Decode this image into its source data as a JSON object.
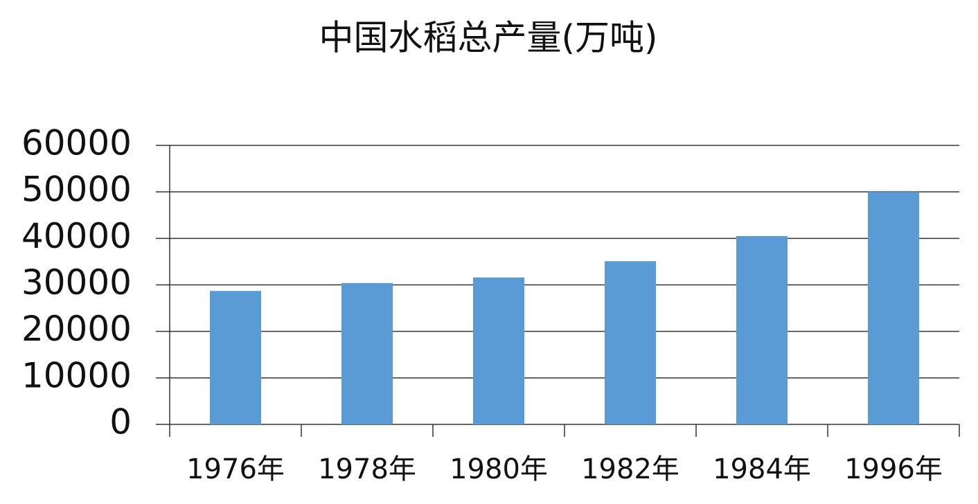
{
  "chart_data": {
    "type": "bar",
    "title": "中国水稻总产量(万吨)",
    "categories": [
      "1976年",
      "1978年",
      "1980年",
      "1982年",
      "1984年",
      "1996年"
    ],
    "values": [
      28700,
      30400,
      31600,
      35100,
      40500,
      50000
    ],
    "color": "#5b9bd5",
    "ylim": [
      0,
      60000
    ],
    "yticks": [
      0,
      10000,
      20000,
      30000,
      40000,
      50000,
      60000
    ],
    "grid": true
  }
}
